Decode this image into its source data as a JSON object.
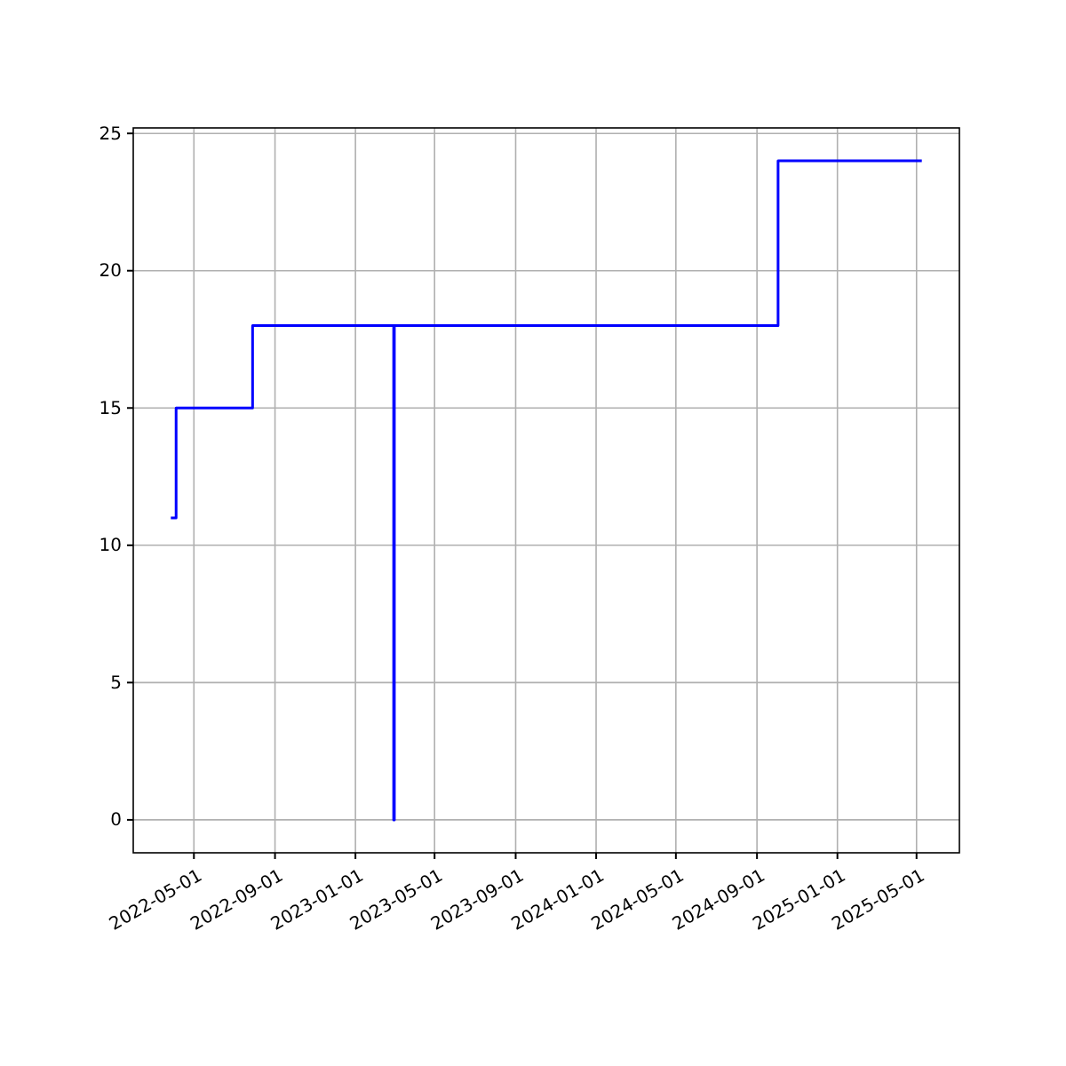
{
  "chart_data": {
    "type": "step",
    "x": [
      "2022-03-27",
      "2022-04-04",
      "2022-07-29",
      "2023-02-28",
      "2023-03-01",
      "2024-10-03",
      "2025-05-09"
    ],
    "values": [
      11,
      15,
      18,
      0,
      18,
      24,
      24
    ],
    "color": "#0000ff",
    "xlim": [
      "2022-01-29",
      "2025-07-05"
    ],
    "xticks": [
      {
        "value": "2022-05-01",
        "label": "2022-05-01"
      },
      {
        "value": "2022-09-01",
        "label": "2022-09-01"
      },
      {
        "value": "2023-01-01",
        "label": "2023-01-01"
      },
      {
        "value": "2023-05-01",
        "label": "2023-05-01"
      },
      {
        "value": "2023-09-01",
        "label": "2023-09-01"
      },
      {
        "value": "2024-01-01",
        "label": "2024-01-01"
      },
      {
        "value": "2024-05-01",
        "label": "2024-05-01"
      },
      {
        "value": "2024-09-01",
        "label": "2024-09-01"
      },
      {
        "value": "2025-01-01",
        "label": "2025-01-01"
      },
      {
        "value": "2025-05-01",
        "label": "2025-05-01"
      }
    ],
    "ylim": [
      -1.2,
      25.2
    ],
    "yticks": [
      0,
      5,
      10,
      15,
      20,
      25
    ],
    "grid": true
  }
}
